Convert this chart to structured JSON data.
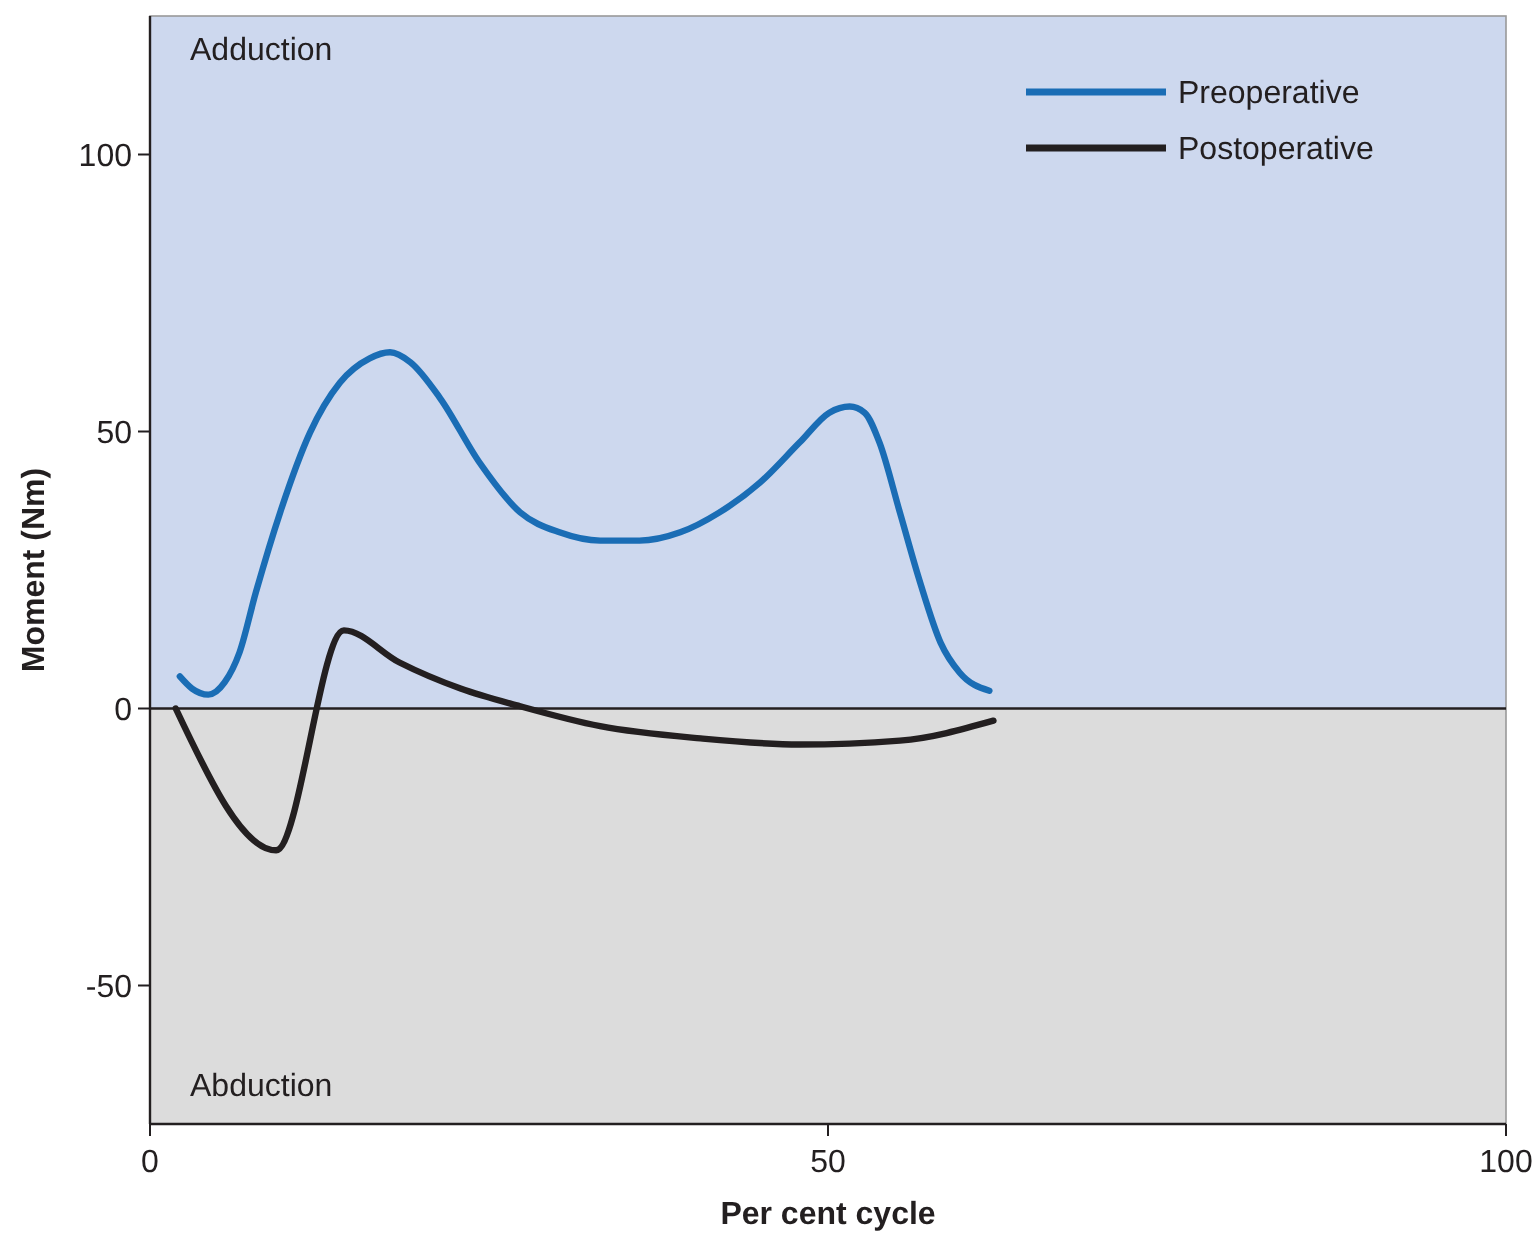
{
  "chart_data": {
    "type": "line",
    "xlabel": "Per cent cycle",
    "ylabel": "Moment (Nm)",
    "xlim": [
      0,
      100
    ],
    "ylim": [
      -75,
      125
    ],
    "xticks": [
      0,
      50,
      100
    ],
    "yticks": [
      -50,
      0,
      50,
      100
    ],
    "grid": false,
    "legend": "top right",
    "line_style": "solid",
    "marker": "none",
    "bands": [
      {
        "axis": "y",
        "from": 0,
        "to": 125,
        "label": "Adduction",
        "color": "#cdd8ee"
      },
      {
        "axis": "y",
        "from": -75,
        "to": 0,
        "label": "Abduction",
        "color": "#dcdcdc"
      }
    ],
    "ref_lines": [
      {
        "axis": "y",
        "value": 0,
        "color": "#231f20"
      }
    ],
    "series": [
      {
        "name": "Preoperative",
        "color": "#1a6db5",
        "x": [
          2.2,
          3.1,
          4.3,
          5.5,
          6.6,
          7.8,
          9.6,
          11.8,
          14.0,
          16.2,
          17.7,
          19.2,
          21.4,
          24.3,
          27.3,
          30.2,
          33.2,
          36.1,
          39.1,
          42.0,
          45.0,
          47.9,
          50.1,
          51.6,
          52.7,
          53.8,
          55.3,
          56.8,
          58.3,
          59.7,
          61.9
        ],
        "values": [
          5.8,
          3.6,
          2.5,
          4.7,
          10.1,
          20.9,
          35.4,
          49.8,
          58.8,
          63.2,
          64.3,
          62.5,
          56.0,
          44.4,
          35.4,
          31.8,
          30.3,
          30.3,
          31.8,
          35.4,
          40.8,
          48.0,
          53.4,
          54.5,
          53.4,
          48.0,
          35.4,
          22.7,
          11.9,
          6.5,
          3.2
        ]
      },
      {
        "name": "Postoperative",
        "color": "#231f20",
        "x": [
          1.9,
          9.3,
          14.3,
          18.4,
          22.9,
          27.3,
          33.2,
          40.6,
          47.9,
          55.3,
          62.2
        ],
        "values": [
          0,
          -25.6,
          14.1,
          8.3,
          3.6,
          0.4,
          -3.2,
          -5.4,
          -6.5,
          -5.8,
          -2.2
        ]
      }
    ]
  }
}
